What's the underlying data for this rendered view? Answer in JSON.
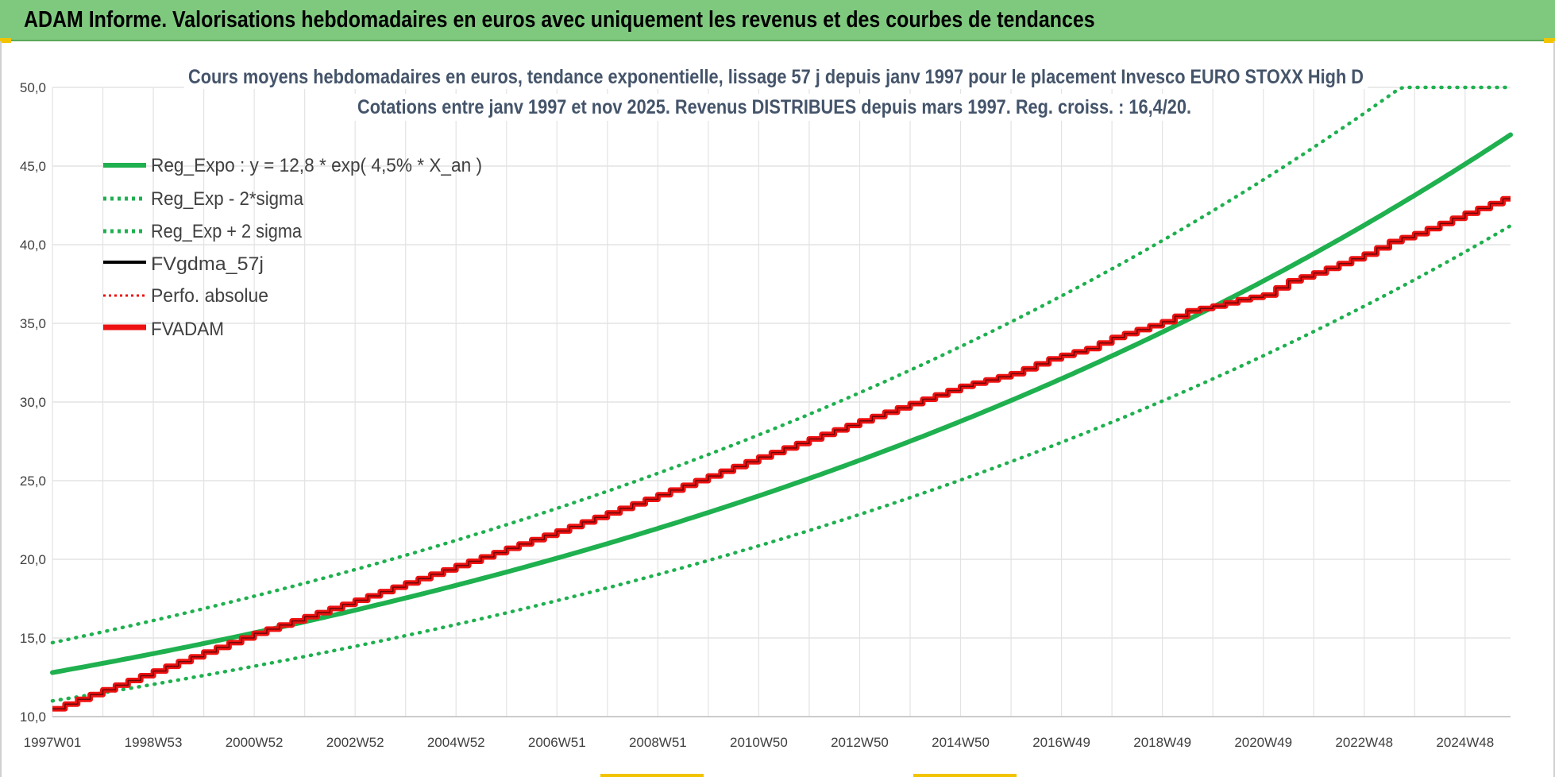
{
  "banner": {
    "title": "ADAM Informe. Valorisations hebdomadaires en euros avec uniquement les revenus et des courbes de tendances"
  },
  "colors": {
    "banner_bg": "#7fc97f",
    "green": "#1fb04f",
    "red": "#ee1111",
    "black": "#000000",
    "grid": "#e3e3e3"
  },
  "chart_data": {
    "type": "line",
    "title": [
      "Cours moyens hebdomadaires en euros, tendance exponentielle, lissage 57 j depuis janv 1997  pour le placement Invesco EURO STOXX High D",
      "Cotations entre janv 1997 et nov 2025. Revenus DISTRIBUES depuis mars 1997.  Reg. croiss. : 16,4/20."
    ],
    "xlabel": "",
    "ylabel": "",
    "x_range_years": [
      1997.0,
      2025.9
    ],
    "ylim": [
      10,
      50
    ],
    "y_ticks": [
      "10,0",
      "15,0",
      "20,0",
      "25,0",
      "30,0",
      "35,0",
      "40,0",
      "45,0",
      "50,0"
    ],
    "y_tick_values": [
      10,
      15,
      20,
      25,
      30,
      35,
      40,
      45,
      50
    ],
    "x_ticks": [
      "1997W01",
      "1998W53",
      "2000W52",
      "2002W52",
      "2004W52",
      "2006W51",
      "2008W51",
      "2010W50",
      "2012W50",
      "2014W50",
      "2016W49",
      "2018W49",
      "2020W49",
      "2022W48",
      "2024W48"
    ],
    "x_tick_years": [
      1997,
      1999,
      2001,
      2003,
      2005,
      2007,
      2009,
      2011,
      2013,
      2015,
      2017,
      2019,
      2021,
      2023,
      2025
    ],
    "grid": true,
    "legend_position": "top-left",
    "legend": [
      {
        "label": "Reg_Expo : y = 12,8 * exp( 4,5% *  X_an )",
        "style": "solid-thick",
        "color": "#1fb04f"
      },
      {
        "label": "Reg_Exp - 2*sigma",
        "style": "dotted",
        "color": "#1fb04f"
      },
      {
        "label": "Reg_Exp + 2 sigma",
        "style": "dotted",
        "color": "#1fb04f"
      },
      {
        "label": "FVgdma_57j",
        "style": "solid-thin",
        "color": "#000000"
      },
      {
        "label": "Perfo. absolue",
        "style": "dotted",
        "color": "#ee1111"
      },
      {
        "label": "FVADAM",
        "style": "solid-thick",
        "color": "#ee1111"
      }
    ],
    "series": [
      {
        "name": "Reg_Expo",
        "kind": "exp",
        "a": 12.8,
        "rate": 0.045,
        "style": "solid-thick",
        "color": "#1fb04f"
      },
      {
        "name": "Reg_Exp - 2*sigma",
        "kind": "exp",
        "a": 11.0,
        "rate": 0.0457,
        "style": "dotted",
        "color": "#1fb04f"
      },
      {
        "name": "Reg_Exp + 2 sigma",
        "kind": "exp",
        "a": 14.7,
        "rate": 0.0458,
        "style": "dotted",
        "color": "#1fb04f",
        "capped_at": 50
      },
      {
        "name": "FVADAM",
        "kind": "points",
        "style": "stair-thick",
        "color": "#ee1111",
        "x": [
          1997.0,
          1999.0,
          2001.0,
          2003.0,
          2005.0,
          2007.0,
          2009.0,
          2011.0,
          2013.0,
          2015.0,
          2016.0,
          2016.8,
          2017.5,
          2018.0,
          2019.0,
          2019.5,
          2020.0,
          2020.5,
          2021.0,
          2021.5,
          2022.0,
          2023.0,
          2023.5,
          2024.0,
          2025.0,
          2025.9
        ],
        "y": [
          10.5,
          12.9,
          15.3,
          17.4,
          19.6,
          21.8,
          24.1,
          26.5,
          28.8,
          31.0,
          31.8,
          32.8,
          33.4,
          34.1,
          35.1,
          35.8,
          36.1,
          36.5,
          36.8,
          37.7,
          38.2,
          39.4,
          40.2,
          40.7,
          42.0,
          43.1
        ]
      },
      {
        "name": "FVgdma_57j",
        "kind": "same_as",
        "of": "FVADAM",
        "style": "solid-thin",
        "color": "#000000"
      }
    ]
  }
}
